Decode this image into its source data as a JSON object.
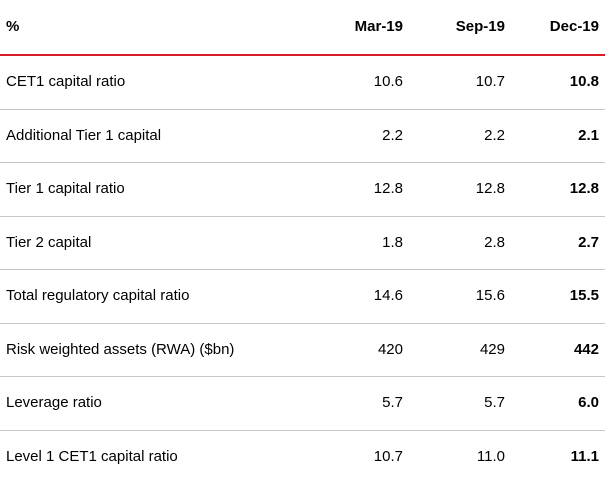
{
  "header": {
    "label": "%",
    "col1": "Mar-19",
    "col2": "Sep-19",
    "col3": "Dec-19"
  },
  "rows": [
    {
      "label": "CET1 capital ratio",
      "mar19": "10.6",
      "sep19": "10.7",
      "dec19": "10.8"
    },
    {
      "label": "Additional Tier 1 capital",
      "mar19": "2.2",
      "sep19": "2.2",
      "dec19": "2.1"
    },
    {
      "label": "Tier 1 capital ratio",
      "mar19": "12.8",
      "sep19": "12.8",
      "dec19": "12.8"
    },
    {
      "label": "Tier 2 capital",
      "mar19": "1.8",
      "sep19": "2.8",
      "dec19": "2.7"
    },
    {
      "label": "Total regulatory capital ratio",
      "mar19": "14.6",
      "sep19": "15.6",
      "dec19": "15.5"
    },
    {
      "label": "Risk weighted assets (RWA) ($bn)",
      "mar19": "420",
      "sep19": "429",
      "dec19": "442"
    },
    {
      "label": "Leverage ratio",
      "mar19": "5.7",
      "sep19": "5.7",
      "dec19": "6.0"
    },
    {
      "label": "Level 1 CET1 capital ratio",
      "mar19": "10.7",
      "sep19": "11.0",
      "dec19": "11.1"
    }
  ],
  "colors": {
    "header_rule": "#d71e28",
    "row_divider": "#c8c8c8"
  }
}
